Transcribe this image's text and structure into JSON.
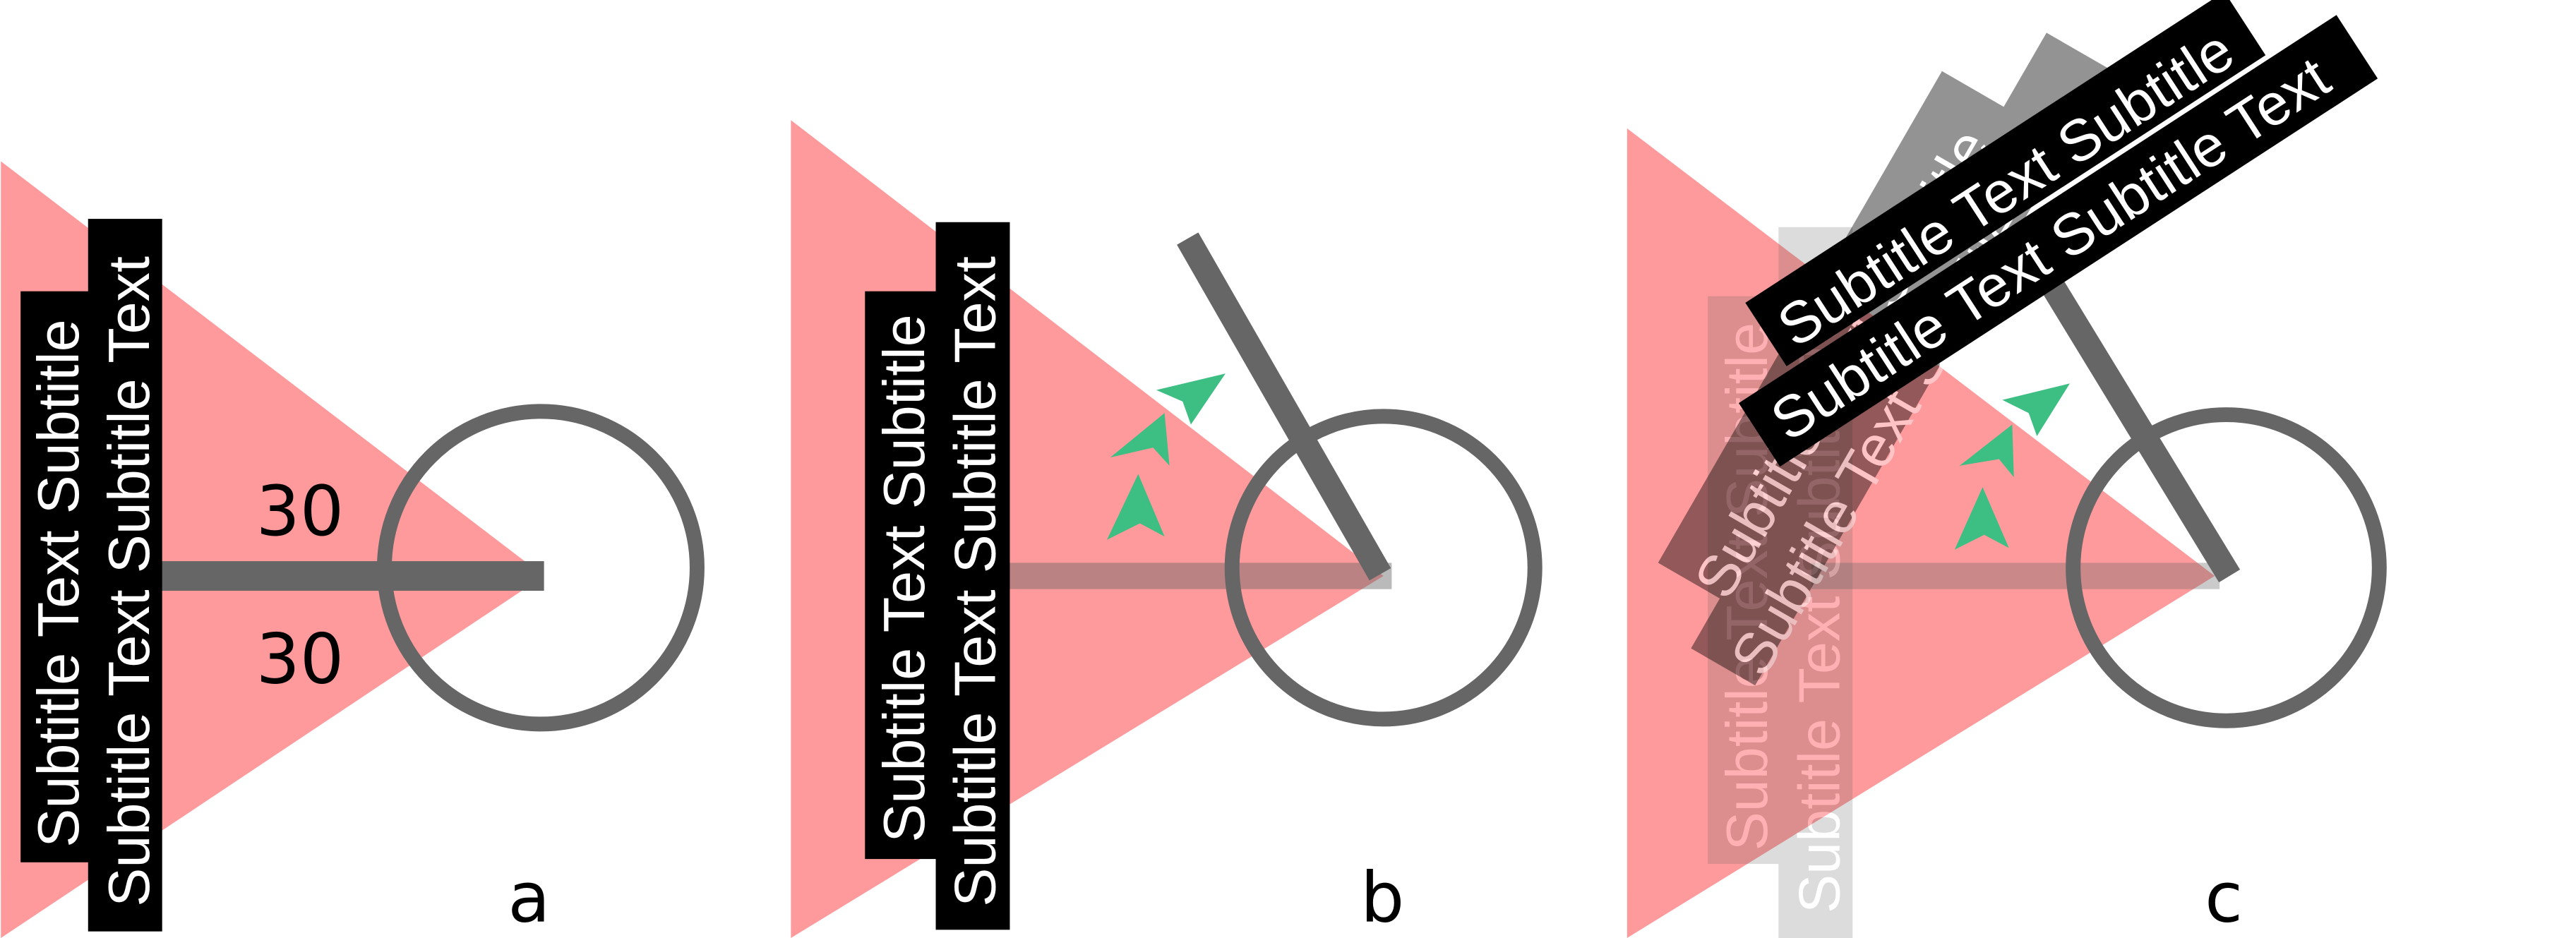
{
  "subtitle": {
    "line1": "Subtitle Text Subtitle",
    "line2": "Subtitle Text Subtitle Text"
  },
  "angles": {
    "upper": "30",
    "lower": "30"
  },
  "panels": [
    {
      "label": "a"
    },
    {
      "label": "b"
    },
    {
      "label": "c"
    }
  ],
  "colors": {
    "view_cone": "#FF9A9C",
    "arm": "#666666",
    "arrow": "#3DBE82",
    "subtitle_bg": "#000000",
    "subtitle_text": "#FFFFFF"
  }
}
